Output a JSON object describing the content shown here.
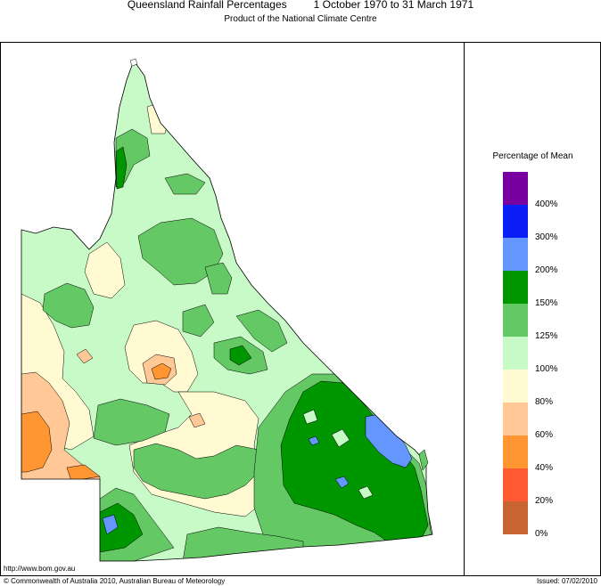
{
  "title": "Queensland Rainfall Percentages         1 October 1970 to 31 March 1971",
  "subtitle": "Product of the National Climate Centre",
  "legend": {
    "title": "Percentage of Mean",
    "labels": [
      "400%",
      "300%",
      "200%",
      "150%",
      "125%",
      "100%",
      "80%",
      "60%",
      "40%",
      "20%",
      "0%"
    ],
    "colors": [
      "#7800a0",
      "#0a1ef5",
      "#6496ff",
      "#009600",
      "#64c864",
      "#c8fac8",
      "#fffad2",
      "#ffc896",
      "#ff9632",
      "#ff5a32",
      "#c86432"
    ]
  },
  "footer": {
    "url": "http://www.bom.gov.au",
    "copyright": "© Commonwealth of Australia 2010, Australian Bureau of Meteorology",
    "issued": "Issued: 07/02/2010"
  }
}
